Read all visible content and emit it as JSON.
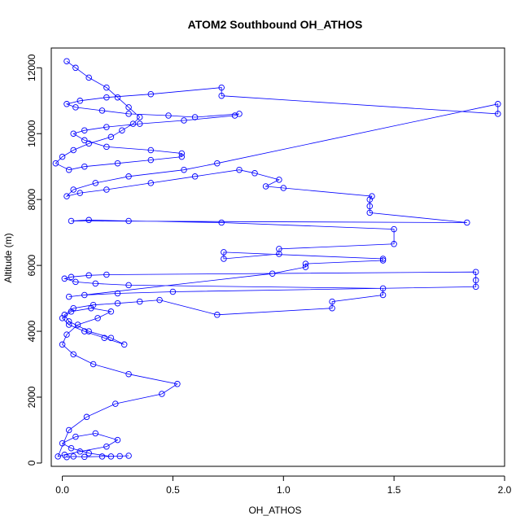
{
  "chart_data": {
    "type": "scatter",
    "title": "ATOM2 Southbound OH_ATHOS",
    "xlabel": "OH_ATHOS",
    "ylabel": "Altitude (m)",
    "xlim": [
      -0.05,
      2.0
    ],
    "ylim": [
      -100,
      12600
    ],
    "x_ticks": [
      0.0,
      0.5,
      1.0,
      1.5,
      2.0
    ],
    "x_tick_labels": [
      "0.0",
      "0.5",
      "1.0",
      "1.5",
      "2.0"
    ],
    "y_ticks": [
      0,
      2000,
      4000,
      6000,
      8000,
      10000,
      12000
    ],
    "y_tick_labels": [
      "0",
      "2000",
      "4000",
      "6000",
      "8000",
      "10000",
      "12000"
    ],
    "grid": false,
    "colors": {
      "series": "#0000ff",
      "axes": "#000000"
    },
    "series": [
      {
        "marker": "open-circle",
        "connected": true,
        "x": [
          0.02,
          0.05,
          0.1,
          0.18,
          0.26,
          0.3,
          0.22,
          0.12,
          0.04,
          0.0,
          0.06,
          0.15,
          0.25,
          0.2,
          0.08,
          0.01,
          -0.02,
          0.03,
          0.11,
          0.24,
          0.45,
          0.52,
          0.3,
          0.14,
          0.05,
          0.0,
          0.02,
          0.07,
          0.16,
          0.22,
          0.13,
          0.04,
          0.0,
          0.03,
          0.1,
          0.19,
          0.28,
          0.22,
          0.12,
          0.03,
          0.01,
          0.05,
          0.14,
          0.25,
          0.35,
          0.44,
          0.7,
          1.22,
          1.22,
          1.45,
          1.45,
          0.3,
          0.15,
          0.06,
          0.01,
          0.04,
          0.12,
          0.2,
          1.87,
          1.87,
          1.87,
          0.5,
          0.25,
          0.1,
          0.03,
          0.95,
          1.1,
          1.1,
          1.45,
          1.45,
          0.73,
          0.73,
          0.98,
          0.98,
          1.5,
          1.5,
          0.72,
          0.3,
          0.12,
          0.04,
          1.83,
          1.39,
          1.39,
          1.39,
          1.4,
          1.0,
          0.92,
          0.98,
          0.87,
          0.8,
          0.6,
          0.4,
          0.2,
          0.08,
          0.02,
          0.05,
          0.15,
          0.3,
          0.55,
          0.7,
          1.97,
          1.97,
          0.72,
          0.72,
          0.4,
          0.2,
          0.08,
          0.02,
          0.06,
          0.18,
          0.3,
          0.48,
          0.6,
          0.8,
          0.78,
          0.55,
          0.35,
          0.2,
          0.1,
          0.05,
          0.1,
          0.2,
          0.4,
          0.54,
          0.54,
          0.4,
          0.25,
          0.1,
          0.03,
          -0.03,
          0.0,
          0.05,
          0.12,
          0.22,
          0.27,
          0.32,
          0.35,
          0.3,
          0.25,
          0.2,
          0.12,
          0.06,
          0.02
        ],
        "y": [
          180,
          200,
          190,
          200,
          210,
          220,
          200,
          300,
          450,
          600,
          800,
          900,
          700,
          500,
          350,
          250,
          200,
          1000,
          1400,
          1800,
          2100,
          2400,
          2700,
          3000,
          3300,
          3600,
          3900,
          4200,
          4400,
          4600,
          4700,
          4600,
          4400,
          4200,
          4000,
          3800,
          3600,
          3800,
          4000,
          4300,
          4500,
          4700,
          4800,
          4850,
          4900,
          4950,
          4500,
          4700,
          4900,
          5100,
          5300,
          5400,
          5450,
          5500,
          5600,
          5650,
          5700,
          5720,
          5800,
          5550,
          5350,
          5200,
          5150,
          5100,
          5050,
          5750,
          5950,
          6050,
          6150,
          6200,
          6400,
          6200,
          6350,
          6500,
          6650,
          7100,
          7300,
          7350,
          7380,
          7350,
          7300,
          7600,
          7800,
          8000,
          8100,
          8350,
          8400,
          8600,
          8800,
          8900,
          8700,
          8500,
          8300,
          8200,
          8100,
          8300,
          8500,
          8700,
          8900,
          9100,
          10900,
          10600,
          11150,
          11400,
          11200,
          11100,
          11000,
          10900,
          10800,
          10700,
          10600,
          10550,
          10500,
          10600,
          10550,
          10400,
          10300,
          10200,
          10100,
          10000,
          9800,
          9600,
          9500,
          9400,
          9300,
          9200,
          9100,
          9000,
          8900,
          9100,
          9300,
          9500,
          9700,
          9900,
          10100,
          10300,
          10500,
          10800,
          11100,
          11400,
          11700,
          12000,
          12200
        ]
      }
    ]
  }
}
